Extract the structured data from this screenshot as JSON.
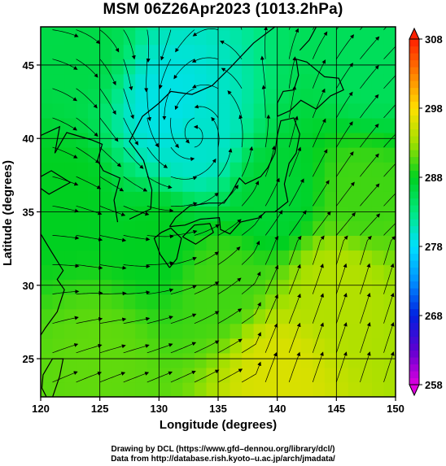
{
  "title": "MSM 06Z26Apr2023 (1013.2hPa)",
  "footer": {
    "line1": "Drawing by DCL (https://www.gfd–dennou.org/library/dcl/)",
    "line2": "Data from http://database.rish.kyoto–u.ac.jp/arch/jmadata/"
  },
  "chart_data": {
    "type": "heatmap",
    "title": "MSM 06Z26Apr2023 (1013.2hPa)",
    "xlabel": "Longitude (degrees)",
    "ylabel": "Latitude  (degrees)",
    "xlim": [
      120,
      150
    ],
    "ylim": [
      22.4,
      47.6
    ],
    "xticks": [
      120,
      125,
      130,
      135,
      140,
      145,
      150
    ],
    "yticks": [
      25,
      30,
      35,
      40,
      45
    ],
    "grid": true,
    "colorbar": {
      "min": 258,
      "max": 308,
      "ticks": [
        258,
        268,
        278,
        288,
        298,
        308
      ],
      "stops": [
        {
          "v": 258,
          "color": "#e000e0"
        },
        {
          "v": 263,
          "color": "#6000d0"
        },
        {
          "v": 268,
          "color": "#0020e0"
        },
        {
          "v": 273,
          "color": "#0090ff"
        },
        {
          "v": 278,
          "color": "#00e0ff"
        },
        {
          "v": 283,
          "color": "#00e880"
        },
        {
          "v": 288,
          "color": "#00d020"
        },
        {
          "v": 293,
          "color": "#a0e000"
        },
        {
          "v": 298,
          "color": "#ffe000"
        },
        {
          "v": 303,
          "color": "#ff8000"
        },
        {
          "v": 308,
          "color": "#ff2000"
        }
      ]
    },
    "field_features": [
      {
        "lon": 133,
        "lat": 40,
        "value": 280
      },
      {
        "lon": 131,
        "lat": 42,
        "value": 279
      },
      {
        "lon": 123,
        "lat": 46,
        "value": 286
      },
      {
        "lon": 140,
        "lat": 36,
        "value": 287
      },
      {
        "lon": 147,
        "lat": 36,
        "value": 290
      },
      {
        "lon": 130,
        "lat": 33,
        "value": 288
      },
      {
        "lon": 135,
        "lat": 30,
        "value": 290
      },
      {
        "lon": 145,
        "lat": 30,
        "value": 294
      },
      {
        "lon": 140,
        "lat": 24,
        "value": 296
      },
      {
        "lon": 125,
        "lat": 25,
        "value": 291
      },
      {
        "lon": 122,
        "lat": 36,
        "value": 288
      },
      {
        "lon": 148,
        "lat": 45,
        "value": 285
      }
    ],
    "cyclone_center": {
      "lon": 133,
      "lat": 40
    }
  }
}
